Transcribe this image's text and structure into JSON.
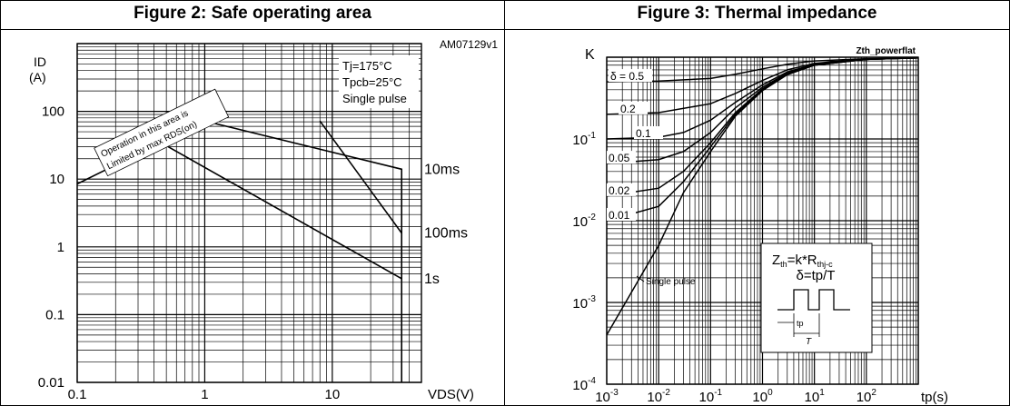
{
  "figures": [
    {
      "title": "Figure 2: Safe operating area"
    },
    {
      "title": "Figure 3: Thermal impedance"
    }
  ],
  "chart_data": [
    {
      "type": "line",
      "title": "Figure 2: Safe operating area",
      "code": "AM07129v1",
      "xlabel": "VDS(V)",
      "ylabel_top": "ID",
      "ylabel_unit": "(A)",
      "xscale": "log",
      "yscale": "log",
      "xlim": [
        0.1,
        50
      ],
      "ylim": [
        0.01,
        1000
      ],
      "grid": true,
      "xticks": [
        {
          "v": 0.1,
          "label": "0.1"
        },
        {
          "v": 1,
          "label": "1"
        },
        {
          "v": 10,
          "label": "10"
        }
      ],
      "yticks": [
        {
          "v": 0.01,
          "label": "0.01"
        },
        {
          "v": 0.1,
          "label": "0.1"
        },
        {
          "v": 1,
          "label": "1"
        },
        {
          "v": 10,
          "label": "10"
        },
        {
          "v": 100,
          "label": "100"
        }
      ],
      "conditions": [
        "Tj=175°C",
        "Tpcb=25°C",
        "Single pulse"
      ],
      "annotation": [
        "Operation in this area is",
        "Limited by max RDS(on)"
      ],
      "series": [
        {
          "name": "10ms",
          "x": [
            0.1,
            1,
            35,
            35
          ],
          "y": [
            8.5,
            72,
            14,
            0.01
          ]
        },
        {
          "name": "100ms",
          "x": [
            8,
            35
          ],
          "y": [
            72,
            1.6
          ]
        },
        {
          "name": "1s",
          "x": [
            0.46,
            35
          ],
          "y": [
            34,
            0.34
          ]
        }
      ]
    },
    {
      "type": "line",
      "title": "Figure 3: Thermal impedance",
      "code": "Zth_powerflat",
      "xlabel": "tp(s)",
      "ylabel": "K",
      "xscale": "log",
      "yscale": "log",
      "xlim": [
        0.001,
        1000
      ],
      "ylim": [
        0.0001,
        1
      ],
      "grid": true,
      "xticks": [
        {
          "v": 0.001,
          "base": "10",
          "exp": "-3"
        },
        {
          "v": 0.01,
          "base": "10",
          "exp": "-2"
        },
        {
          "v": 0.1,
          "base": "10",
          "exp": "-1"
        },
        {
          "v": 1,
          "base": "10",
          "exp": "0"
        },
        {
          "v": 10,
          "base": "10",
          "exp": "1"
        },
        {
          "v": 100,
          "base": "10",
          "exp": "2"
        }
      ],
      "yticks": [
        {
          "v": 0.0001,
          "base": "10",
          "exp": "-4"
        },
        {
          "v": 0.001,
          "base": "10",
          "exp": "-3"
        },
        {
          "v": 0.01,
          "base": "10",
          "exp": "-2"
        },
        {
          "v": 0.1,
          "base": "10",
          "exp": "-1"
        }
      ],
      "formula": {
        "zth_main": "Z",
        "zth_sub": "th",
        "eq": "=k*R",
        "r_sub": "thj-c",
        "delta": "δ=tp/T",
        "tp": "tp",
        "T": "T"
      },
      "duty_labels": [
        "δ = 0.5",
        "0.2",
        "0.1",
        "0.05",
        "0.02",
        "0.01",
        "Single pulse"
      ],
      "series": [
        {
          "name": "δ = 0.5",
          "x": [
            0.001,
            0.01,
            0.1,
            0.3,
            1,
            3,
            10,
            100,
            1000
          ],
          "y": [
            0.5,
            0.51,
            0.55,
            0.62,
            0.72,
            0.82,
            0.9,
            0.96,
            0.98
          ]
        },
        {
          "name": "0.2",
          "x": [
            0.001,
            0.01,
            0.1,
            0.3,
            1,
            3,
            10,
            100,
            1000
          ],
          "y": [
            0.2,
            0.21,
            0.27,
            0.36,
            0.52,
            0.7,
            0.84,
            0.95,
            0.98
          ]
        },
        {
          "name": "0.1",
          "x": [
            0.001,
            0.01,
            0.03,
            0.1,
            0.3,
            1,
            3,
            10,
            100,
            1000
          ],
          "y": [
            0.1,
            0.105,
            0.12,
            0.17,
            0.28,
            0.46,
            0.66,
            0.82,
            0.95,
            0.98
          ]
        },
        {
          "name": "0.05",
          "x": [
            0.001,
            0.01,
            0.03,
            0.1,
            0.3,
            1,
            3,
            10,
            100,
            1000
          ],
          "y": [
            0.05,
            0.056,
            0.07,
            0.12,
            0.24,
            0.43,
            0.64,
            0.81,
            0.94,
            0.98
          ]
        },
        {
          "name": "0.02",
          "x": [
            0.001,
            0.01,
            0.03,
            0.1,
            0.3,
            1,
            3,
            10,
            100,
            1000
          ],
          "y": [
            0.02,
            0.025,
            0.04,
            0.09,
            0.21,
            0.41,
            0.63,
            0.8,
            0.94,
            0.98
          ]
        },
        {
          "name": "0.01",
          "x": [
            0.001,
            0.01,
            0.03,
            0.1,
            0.3,
            1,
            3,
            10,
            100,
            1000
          ],
          "y": [
            0.01,
            0.015,
            0.03,
            0.08,
            0.2,
            0.4,
            0.62,
            0.8,
            0.94,
            0.98
          ]
        },
        {
          "name": "Single pulse",
          "x": [
            0.001,
            0.01,
            0.03,
            0.1,
            0.3,
            1,
            3,
            10,
            100,
            1000
          ],
          "y": [
            0.0004,
            0.005,
            0.022,
            0.07,
            0.19,
            0.39,
            0.61,
            0.8,
            0.94,
            0.98
          ]
        }
      ]
    }
  ]
}
